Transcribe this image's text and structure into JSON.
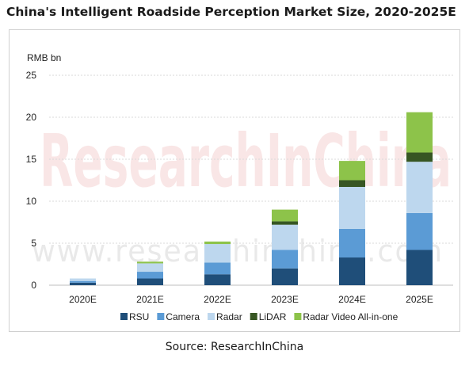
{
  "title": "China's Intelligent Roadside Perception Market Size, 2020-2025E",
  "source": "Source: ResearchInChina",
  "watermark": {
    "main": "ResearchInChina",
    "url": "www.researchinchina.com"
  },
  "chart_data": {
    "type": "bar",
    "stacked": true,
    "title": "China's Intelligent Roadside Perception Market Size, 2020-2025E",
    "ylabel": "RMB bn",
    "xlabel": "",
    "ylim": [
      0,
      25
    ],
    "yticks": [
      0,
      5,
      10,
      15,
      20,
      25
    ],
    "grid": true,
    "legend_position": "bottom",
    "categories": [
      "2020E",
      "2021E",
      "2022E",
      "2023E",
      "2024E",
      "2025E"
    ],
    "series": [
      {
        "name": "RSU",
        "color": "#1f4e79",
        "values": [
          0.3,
          0.8,
          1.3,
          2.0,
          3.3,
          4.2
        ]
      },
      {
        "name": "Camera",
        "color": "#5b9bd5",
        "values": [
          0.2,
          0.8,
          1.4,
          2.2,
          3.4,
          4.4
        ]
      },
      {
        "name": "Radar",
        "color": "#bdd7ee",
        "values": [
          0.3,
          1.0,
          2.2,
          3.0,
          5.0,
          6.1
        ]
      },
      {
        "name": "LiDAR",
        "color": "#375623",
        "values": [
          0,
          0,
          0,
          0.4,
          0.8,
          1.1
        ]
      },
      {
        "name": "Radar Video All-in-one",
        "color": "#8dc34a",
        "values": [
          0,
          0.2,
          0.3,
          1.4,
          2.3,
          4.8
        ]
      }
    ]
  }
}
